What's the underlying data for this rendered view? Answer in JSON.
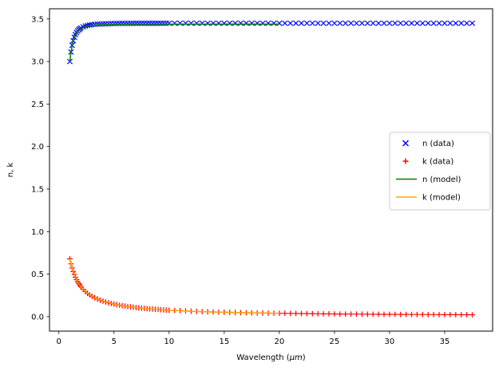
{
  "figure": {
    "title": "",
    "xlabel": "Wavelength (μm)",
    "xlabel_prefix": "Wavelength (",
    "xlabel_math": "μm",
    "xlabel_suffix": ")",
    "ylabel": "n, k",
    "background": "#ffffff",
    "xlim": [
      -0.85,
      39.35
    ],
    "ylim": [
      -0.17,
      3.62
    ],
    "xticks": [
      0,
      5,
      10,
      15,
      20,
      25,
      30,
      35
    ],
    "xtick_labels": [
      "0",
      "5",
      "10",
      "15",
      "20",
      "25",
      "30",
      "35"
    ],
    "yticks": [
      0.0,
      0.5,
      1.0,
      1.5,
      2.0,
      2.5,
      3.0,
      3.5
    ],
    "ytick_labels": [
      "0.0",
      "0.5",
      "1.0",
      "1.5",
      "2.0",
      "2.5",
      "3.0",
      "3.5"
    ]
  },
  "chart_data": {
    "type": "scatter+line",
    "grid": false,
    "legend": {
      "position": "center right",
      "entries": [
        "n (data)",
        "k (data)",
        "n (model)",
        "k (model)"
      ],
      "edge_color": "#cccccc"
    },
    "x": [
      1.0,
      1.1,
      1.2,
      1.3,
      1.4,
      1.5,
      1.6,
      1.7,
      1.8,
      1.9,
      2.0,
      2.2,
      2.4,
      2.6,
      2.8,
      3.0,
      3.25,
      3.5,
      3.75,
      4.0,
      4.25,
      4.5,
      4.75,
      5.0,
      5.25,
      5.5,
      5.75,
      6.0,
      6.25,
      6.5,
      6.75,
      7.0,
      7.25,
      7.5,
      7.75,
      8.0,
      8.25,
      8.5,
      8.75,
      9.0,
      9.25,
      9.5,
      9.75,
      10.0,
      10.5,
      11.0,
      11.5,
      12.0,
      12.5,
      13.0,
      13.5,
      14.0,
      14.5,
      15.0,
      15.5,
      16.0,
      16.5,
      17.0,
      17.5,
      18.0,
      18.5,
      19.0,
      19.5,
      20.0,
      20.5,
      21.0,
      21.5,
      22.0,
      22.5,
      23.0,
      23.5,
      24.0,
      24.5,
      25.0,
      25.5,
      26.0,
      26.5,
      27.0,
      27.5,
      28.0,
      28.5,
      29.0,
      29.5,
      30.0,
      30.5,
      31.0,
      31.5,
      32.0,
      32.5,
      33.0,
      33.5,
      34.0,
      34.5,
      35.0,
      35.5,
      36.0,
      36.5,
      37.0,
      37.5
    ],
    "series": [
      {
        "id": "n-data",
        "name": "n (data)",
        "style": "marker",
        "marker": "x",
        "color": "#0000ff",
        "values": [
          3.0,
          3.112,
          3.19,
          3.245,
          3.286,
          3.317,
          3.34,
          3.358,
          3.373,
          3.384,
          3.394,
          3.408,
          3.417,
          3.424,
          3.43,
          3.433,
          3.437,
          3.44,
          3.441,
          3.443,
          3.444,
          3.445,
          3.446,
          3.446,
          3.447,
          3.447,
          3.448,
          3.448,
          3.448,
          3.448,
          3.449,
          3.449,
          3.449,
          3.449,
          3.449,
          3.449,
          3.449,
          3.449,
          3.449,
          3.449,
          3.449,
          3.45,
          3.45,
          3.45,
          3.45,
          3.45,
          3.45,
          3.45,
          3.45,
          3.45,
          3.45,
          3.45,
          3.45,
          3.45,
          3.45,
          3.45,
          3.45,
          3.45,
          3.45,
          3.45,
          3.45,
          3.45,
          3.45,
          3.45,
          3.45,
          3.45,
          3.45,
          3.45,
          3.45,
          3.45,
          3.45,
          3.45,
          3.45,
          3.45,
          3.45,
          3.45,
          3.45,
          3.45,
          3.45,
          3.45,
          3.45,
          3.45,
          3.45,
          3.45,
          3.45,
          3.45,
          3.45,
          3.45,
          3.45,
          3.45,
          3.45,
          3.45,
          3.45,
          3.45,
          3.45,
          3.45,
          3.45,
          3.45,
          3.45
        ]
      },
      {
        "id": "k-data",
        "name": "k (data)",
        "style": "marker",
        "marker": "+",
        "color": "#ff0000",
        "values": [
          0.68,
          0.621,
          0.572,
          0.53,
          0.494,
          0.463,
          0.435,
          0.411,
          0.389,
          0.37,
          0.352,
          0.322,
          0.296,
          0.274,
          0.256,
          0.239,
          0.222,
          0.207,
          0.194,
          0.182,
          0.172,
          0.163,
          0.155,
          0.147,
          0.141,
          0.135,
          0.129,
          0.124,
          0.119,
          0.115,
          0.111,
          0.107,
          0.104,
          0.1,
          0.097,
          0.094,
          0.092,
          0.089,
          0.087,
          0.084,
          0.082,
          0.08,
          0.078,
          0.076,
          0.073,
          0.07,
          0.067,
          0.064,
          0.062,
          0.059,
          0.057,
          0.055,
          0.054,
          0.052,
          0.05,
          0.049,
          0.047,
          0.046,
          0.045,
          0.044,
          0.043,
          0.041,
          0.04,
          0.039,
          0.039,
          0.038,
          0.037,
          0.036,
          0.036,
          0.035,
          0.034,
          0.033,
          0.033,
          0.032,
          0.031,
          0.031,
          0.03,
          0.03,
          0.029,
          0.029,
          0.028,
          0.028,
          0.027,
          0.027,
          0.027,
          0.026,
          0.026,
          0.025,
          0.025,
          0.025,
          0.024,
          0.024,
          0.024,
          0.023,
          0.023,
          0.023,
          0.022,
          0.022,
          0.022
        ]
      },
      {
        "id": "n-model",
        "name": "n (model)",
        "style": "line",
        "color": "#008000",
        "x": [
          1.0,
          1.1,
          1.2,
          1.3,
          1.4,
          1.5,
          1.6,
          1.8,
          2.0,
          2.25,
          2.5,
          3.0,
          3.5,
          4.0,
          5.0,
          6.0,
          7.0,
          8.0,
          9.0,
          10.0,
          12.0,
          14.0,
          16.0,
          18.0,
          20.0
        ],
        "values": [
          3.0,
          3.109,
          3.185,
          3.24,
          3.28,
          3.31,
          3.333,
          3.365,
          3.385,
          3.401,
          3.412,
          3.424,
          3.43,
          3.433,
          3.436,
          3.438,
          3.439,
          3.439,
          3.439,
          3.44,
          3.44,
          3.44,
          3.44,
          3.44,
          3.44
        ]
      },
      {
        "id": "k-model",
        "name": "k (model)",
        "style": "line",
        "color": "#ffa500",
        "x": [
          1.0,
          1.1,
          1.2,
          1.3,
          1.4,
          1.5,
          1.6,
          1.8,
          2.0,
          2.25,
          2.5,
          3.0,
          3.5,
          4.0,
          5.0,
          6.0,
          7.0,
          8.0,
          9.0,
          10.0,
          12.0,
          14.0,
          16.0,
          18.0,
          20.0
        ],
        "values": [
          0.68,
          0.621,
          0.572,
          0.53,
          0.494,
          0.463,
          0.435,
          0.389,
          0.352,
          0.315,
          0.285,
          0.239,
          0.207,
          0.182,
          0.147,
          0.124,
          0.107,
          0.094,
          0.084,
          0.076,
          0.064,
          0.055,
          0.049,
          0.044,
          0.039
        ]
      }
    ]
  }
}
